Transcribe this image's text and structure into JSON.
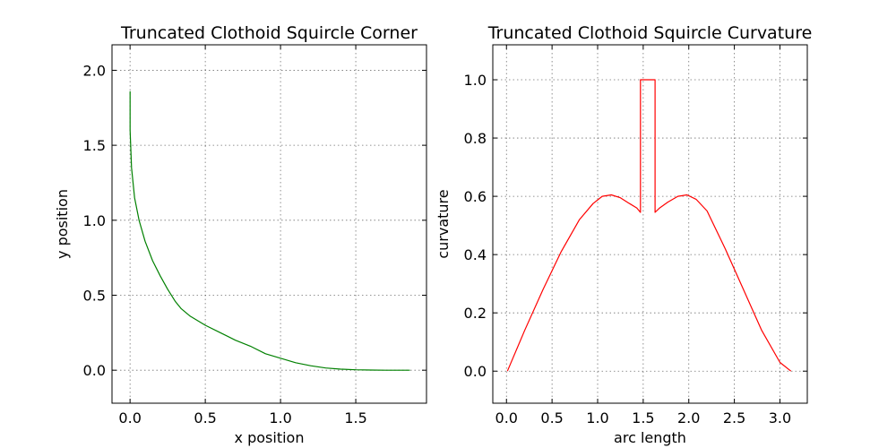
{
  "chart_data": [
    {
      "type": "line",
      "title": "Truncated Clothoid Squircle Corner",
      "xlabel": "x position",
      "ylabel": "y position",
      "xlim": [
        -0.12,
        1.97
      ],
      "ylim": [
        -0.22,
        2.17
      ],
      "xticks": [
        0.0,
        0.5,
        1.0,
        1.5
      ],
      "yticks": [
        0.0,
        0.5,
        1.0,
        1.5,
        2.0
      ],
      "xtick_labels": [
        "0.0",
        "0.5",
        "1.0",
        "1.5"
      ],
      "ytick_labels": [
        "0.0",
        "0.5",
        "1.0",
        "1.5",
        "2.0"
      ],
      "grid": true,
      "series": [
        {
          "color": "#008000",
          "x": [
            0.0,
            0.0,
            0.01,
            0.03,
            0.06,
            0.1,
            0.15,
            0.2,
            0.25,
            0.3,
            0.34,
            0.4,
            0.5,
            0.6,
            0.7,
            0.8,
            0.9,
            1.0,
            1.1,
            1.2,
            1.3,
            1.4,
            1.5,
            1.6,
            1.7,
            1.8,
            1.86
          ],
          "y": [
            1.86,
            1.6,
            1.35,
            1.15,
            1.0,
            0.86,
            0.73,
            0.63,
            0.54,
            0.46,
            0.41,
            0.36,
            0.3,
            0.25,
            0.2,
            0.16,
            0.11,
            0.08,
            0.05,
            0.03,
            0.015,
            0.007,
            0.003,
            0.001,
            0.0,
            0.0,
            0.0
          ]
        }
      ]
    },
    {
      "type": "line",
      "title": "Truncated Clothoid Squircle Curvature",
      "xlabel": "arc length",
      "ylabel": "curvature",
      "xlim": [
        -0.15,
        3.3
      ],
      "ylim": [
        -0.11,
        1.12
      ],
      "xticks": [
        0.0,
        0.5,
        1.0,
        1.5,
        2.0,
        2.5,
        3.0
      ],
      "yticks": [
        0.0,
        0.2,
        0.4,
        0.6,
        0.8,
        1.0
      ],
      "xtick_labels": [
        "0.0",
        "0.5",
        "1.0",
        "1.5",
        "2.0",
        "2.5",
        "3.0"
      ],
      "ytick_labels": [
        "0.0",
        "0.2",
        "0.4",
        "0.6",
        "0.8",
        "1.0"
      ],
      "grid": true,
      "series": [
        {
          "color": "#ff0000",
          "x": [
            0.01,
            0.2,
            0.4,
            0.6,
            0.8,
            0.95,
            1.05,
            1.15,
            1.25,
            1.35,
            1.43,
            1.47,
            1.47,
            1.63,
            1.63,
            1.68,
            1.77,
            1.88,
            1.98,
            2.08,
            2.2,
            2.4,
            2.6,
            2.8,
            3.0,
            3.12
          ],
          "y": [
            0.0,
            0.14,
            0.28,
            0.41,
            0.52,
            0.575,
            0.6,
            0.605,
            0.595,
            0.575,
            0.56,
            0.545,
            1.0,
            1.0,
            0.545,
            0.56,
            0.58,
            0.6,
            0.605,
            0.59,
            0.55,
            0.42,
            0.28,
            0.14,
            0.03,
            0.0
          ]
        }
      ]
    }
  ]
}
